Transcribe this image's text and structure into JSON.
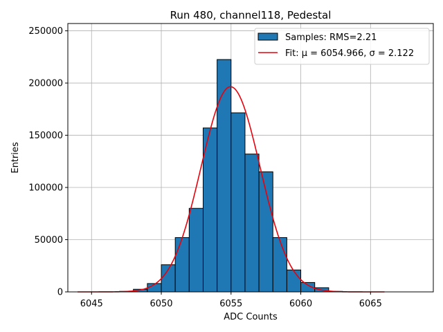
{
  "chart_data": {
    "type": "bar",
    "title": "Run 480, channel118, Pedestal",
    "xlabel": "ADC Counts",
    "ylabel": "Entries",
    "xlim": [
      6043.3,
      6069.5
    ],
    "ylim": [
      0,
      257000
    ],
    "x_ticks": [
      6045,
      6050,
      6055,
      6060,
      6065
    ],
    "y_ticks": [
      0,
      50000,
      100000,
      150000,
      200000,
      250000
    ],
    "grid": true,
    "legend_position": "top-right",
    "bins": [
      {
        "left": 6047,
        "right": 6048,
        "value": 500
      },
      {
        "left": 6048,
        "right": 6049,
        "value": 2500
      },
      {
        "left": 6049,
        "right": 6050,
        "value": 8000
      },
      {
        "left": 6050,
        "right": 6051,
        "value": 26000
      },
      {
        "left": 6051,
        "right": 6052,
        "value": 52000
      },
      {
        "left": 6052,
        "right": 6053,
        "value": 80000
      },
      {
        "left": 6053,
        "right": 6054,
        "value": 157000
      },
      {
        "left": 6054,
        "right": 6055,
        "value": 222500
      },
      {
        "left": 6055,
        "right": 6056,
        "value": 171500
      },
      {
        "left": 6056,
        "right": 6057,
        "value": 132000
      },
      {
        "left": 6057,
        "right": 6058,
        "value": 115000
      },
      {
        "left": 6058,
        "right": 6059,
        "value": 52000
      },
      {
        "left": 6059,
        "right": 6060,
        "value": 21000
      },
      {
        "left": 6060,
        "right": 6061,
        "value": 9000
      },
      {
        "left": 6061,
        "right": 6062,
        "value": 4000
      },
      {
        "left": 6062,
        "right": 6063,
        "value": 500
      }
    ],
    "fit": {
      "mu": 6054.966,
      "sigma": 2.122,
      "amplitude": 196500,
      "x_range": [
        6044,
        6066
      ]
    },
    "series": [
      {
        "name": "Samples: RMS=2.21",
        "kind": "histogram",
        "color": "#1f77b4"
      },
      {
        "name": "Fit: μ = 6054.966, σ = 2.122",
        "kind": "line",
        "color": "#e8000b"
      }
    ]
  }
}
